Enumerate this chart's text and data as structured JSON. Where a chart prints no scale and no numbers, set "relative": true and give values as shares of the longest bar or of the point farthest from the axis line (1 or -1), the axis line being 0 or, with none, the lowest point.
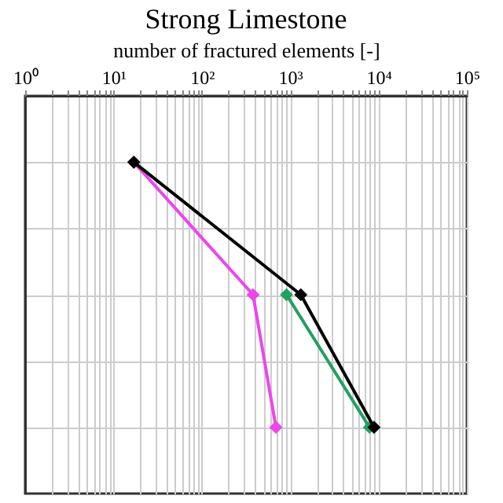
{
  "chart_data": {
    "type": "line",
    "title": "Strong Limestone",
    "xlabel": "number of fractured elements [-]",
    "relative": true,
    "log": "x",
    "grid": true,
    "marker": "diamond",
    "line_style": "solid",
    "tick_labels": "x",
    "xlim": [
      1,
      100000
    ],
    "xticks": [
      {
        "value": 1,
        "label": "10⁰"
      },
      {
        "value": 2,
        "label": null
      },
      {
        "value": 3,
        "label": null
      },
      {
        "value": 4,
        "label": null
      },
      {
        "value": 5,
        "label": null
      },
      {
        "value": 6,
        "label": null
      },
      {
        "value": 7,
        "label": null
      },
      {
        "value": 8,
        "label": null
      },
      {
        "value": 9,
        "label": null
      },
      {
        "value": 10,
        "label": "10¹"
      },
      {
        "value": 20,
        "label": null
      },
      {
        "value": 30,
        "label": null
      },
      {
        "value": 40,
        "label": null
      },
      {
        "value": 50,
        "label": null
      },
      {
        "value": 60,
        "label": null
      },
      {
        "value": 70,
        "label": null
      },
      {
        "value": 80,
        "label": null
      },
      {
        "value": 90,
        "label": null
      },
      {
        "value": 100,
        "label": "10²"
      },
      {
        "value": 200,
        "label": null
      },
      {
        "value": 300,
        "label": null
      },
      {
        "value": 400,
        "label": null
      },
      {
        "value": 500,
        "label": null
      },
      {
        "value": 600,
        "label": null
      },
      {
        "value": 700,
        "label": null
      },
      {
        "value": 800,
        "label": null
      },
      {
        "value": 900,
        "label": null
      },
      {
        "value": 1000,
        "label": "10³"
      },
      {
        "value": 2000,
        "label": null
      },
      {
        "value": 3000,
        "label": null
      },
      {
        "value": 4000,
        "label": null
      },
      {
        "value": 5000,
        "label": null
      },
      {
        "value": 6000,
        "label": null
      },
      {
        "value": 7000,
        "label": null
      },
      {
        "value": 8000,
        "label": null
      },
      {
        "value": 9000,
        "label": null
      },
      {
        "value": 10000,
        "label": "10⁴"
      },
      {
        "value": 20000,
        "label": null
      },
      {
        "value": 30000,
        "label": null
      },
      {
        "value": 40000,
        "label": null
      },
      {
        "value": 50000,
        "label": null
      },
      {
        "value": 60000,
        "label": null
      },
      {
        "value": 70000,
        "label": null
      },
      {
        "value": 80000,
        "label": null
      },
      {
        "value": 90000,
        "label": null
      },
      {
        "value": 100000,
        "label": "10⁵"
      }
    ],
    "series": [
      {
        "color": "#ee44ee",
        "x": [
          17,
          380,
          690
        ],
        "values": [
          1,
          0.6,
          0.2
        ]
      },
      {
        "color": "#22a060",
        "x": [
          910,
          7900
        ],
        "values": [
          0.6,
          0.2
        ]
      },
      {
        "color": "#000000",
        "x": [
          17,
          1320,
          8900
        ],
        "values": [
          1,
          0.6,
          0.2
        ]
      }
    ]
  }
}
